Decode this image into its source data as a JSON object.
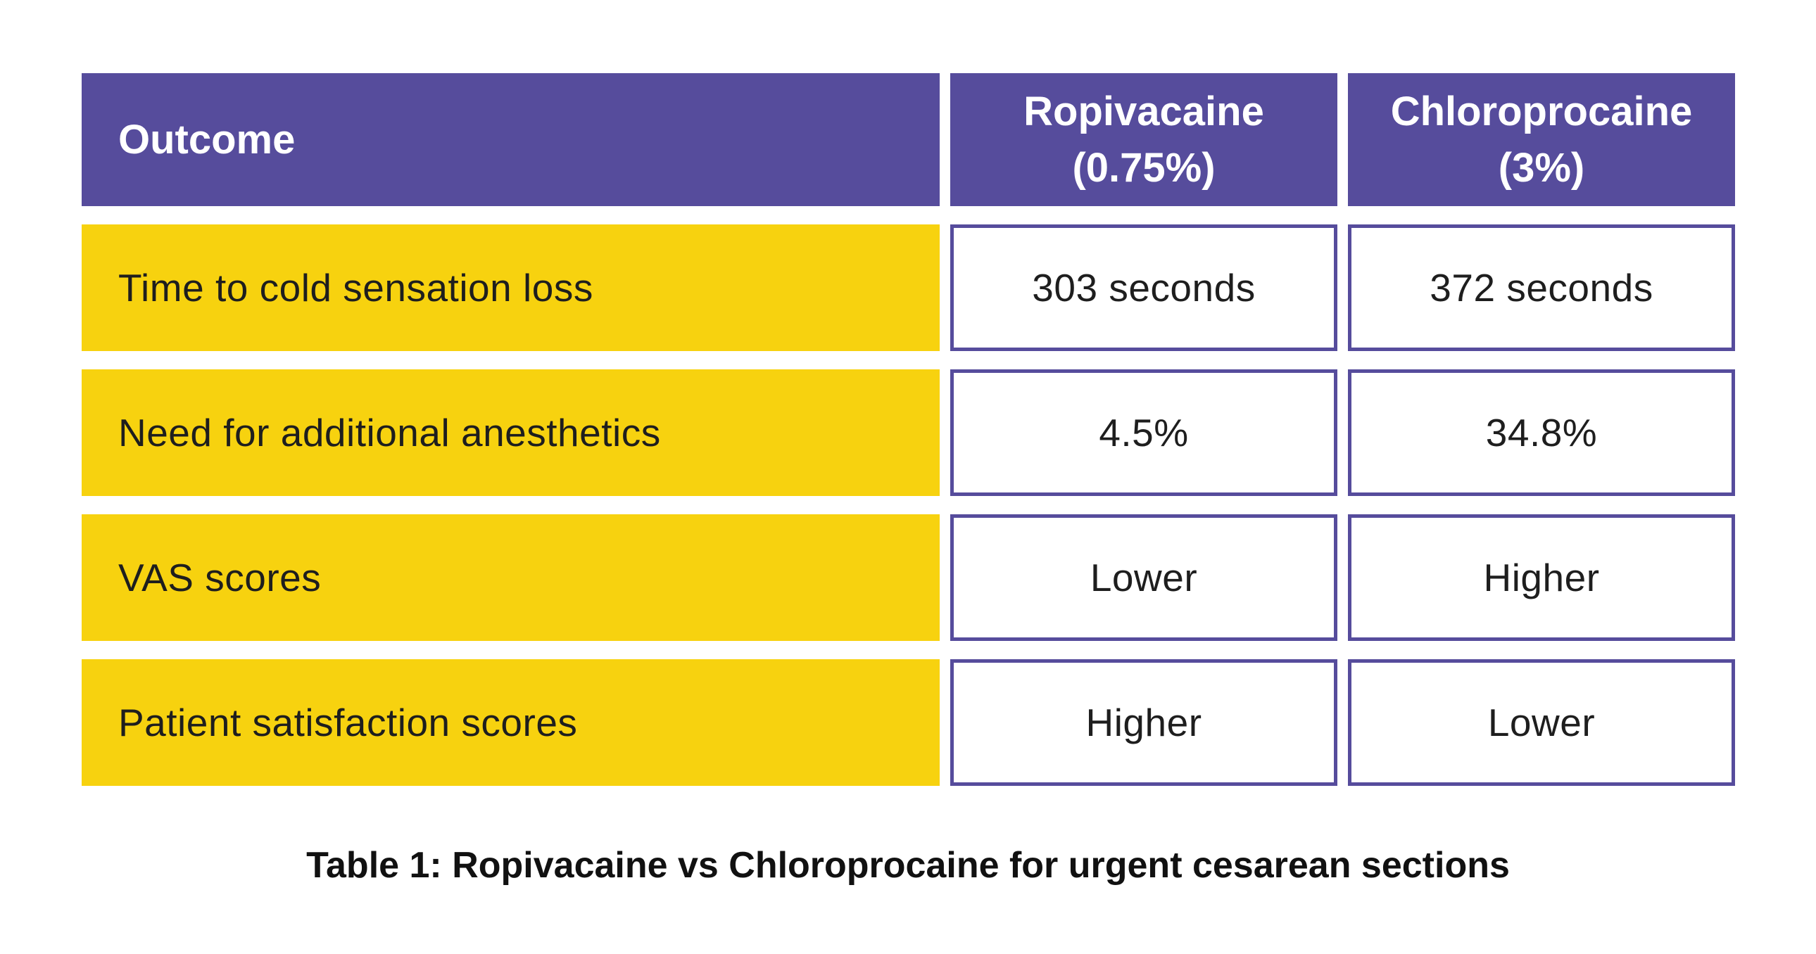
{
  "colors": {
    "header_bg": "#564C9C",
    "header_text": "#FFFFFF",
    "row_bg": "#F7D20F",
    "cell_border": "#564C9C",
    "body_text": "#1E1E1E",
    "caption_text": "#111111",
    "page_bg": "#FFFFFF"
  },
  "chart_data": {
    "type": "table",
    "title": "Table 1: Ropivacaine vs Chloroprocaine for urgent cesarean sections",
    "columns": [
      "Outcome",
      "Ropivacaine (0.75%)",
      "Chloroprocaine (3%)"
    ],
    "rows": [
      [
        "Time to cold sensation loss",
        "303 seconds",
        "372 seconds"
      ],
      [
        "Need for additional anesthetics",
        "4.5%",
        "34.8%"
      ],
      [
        "VAS scores",
        "Lower",
        "Higher"
      ],
      [
        "Patient satisfaction scores",
        "Higher",
        "Lower"
      ]
    ],
    "layout_hints": {
      "header_style": "solid purple band, white bold text",
      "outcome_column_style": "solid yellow band, dark text",
      "value_cell_style": "white cell with purple border, centered dark text",
      "caption_position": "centered below table"
    }
  },
  "header": {
    "outcome": "Outcome",
    "col2": {
      "name": "Ropivacaine",
      "dose": "(0.75%)"
    },
    "col3": {
      "name": "Chloroprocaine",
      "dose": "(3%)"
    }
  },
  "rows": [
    {
      "outcome": "Time to cold sensation loss",
      "ropivacaine": "303 seconds",
      "chloroprocaine": "372 seconds"
    },
    {
      "outcome": "Need for additional anesthetics",
      "ropivacaine": "4.5%",
      "chloroprocaine": "34.8%"
    },
    {
      "outcome": "VAS scores",
      "ropivacaine": "Lower",
      "chloroprocaine": "Higher"
    },
    {
      "outcome": "Patient satisfaction scores",
      "ropivacaine": "Higher",
      "chloroprocaine": "Lower"
    }
  ],
  "caption": "Table 1: Ropivacaine vs Chloroprocaine for urgent cesarean sections"
}
